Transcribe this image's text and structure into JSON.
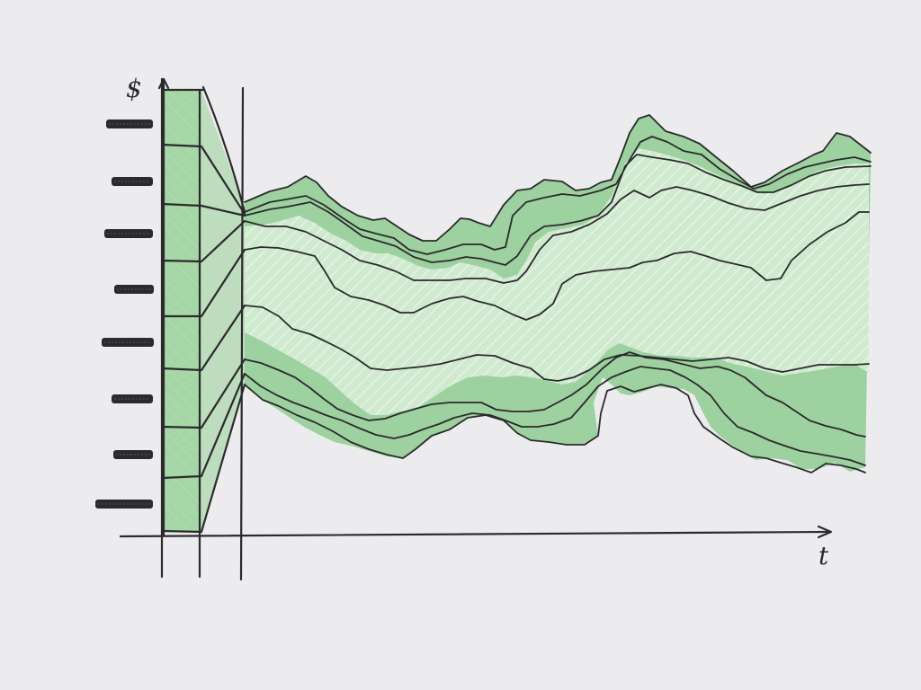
{
  "axes": {
    "y_label": "$",
    "x_label": "t"
  },
  "palette": {
    "paper": "#ececee",
    "ink": "#2b2b2d",
    "fan_fill": "#b8dcb8",
    "band_fill": "#8fcc90",
    "hatch": "#d9eed9"
  },
  "bar": {
    "segments": 8
  },
  "tick_count": 8
}
